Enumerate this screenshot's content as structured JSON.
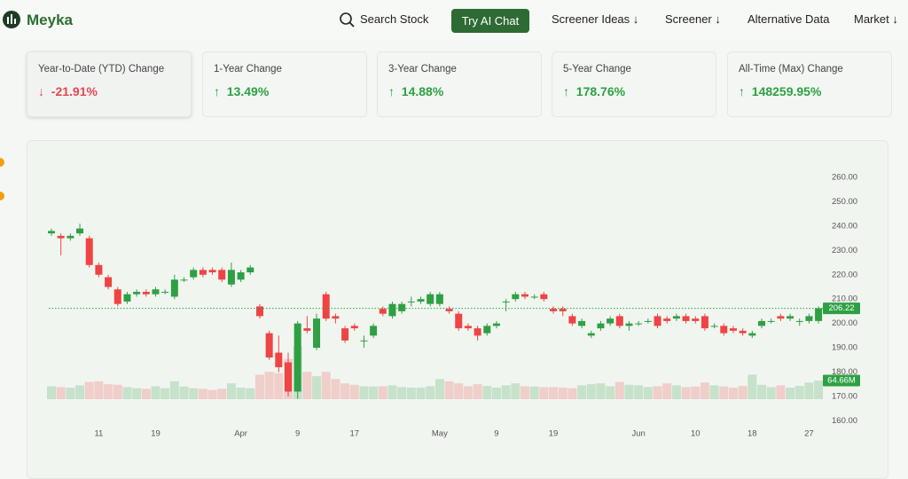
{
  "header": {
    "brand": "Meyka",
    "nav": [
      "Search Stock",
      "Try AI Chat",
      "Screener Ideas ↓",
      "Screener ↓",
      "Alternative Data",
      "Market ↓"
    ]
  },
  "stats": [
    {
      "label": "Year-to-Date (YTD) Change",
      "arrow": "↓",
      "value": "-21.91%"
    },
    {
      "label": "1-Year Change",
      "arrow": "↑",
      "value": "13.49%"
    },
    {
      "label": "3-Year Change",
      "arrow": "↑",
      "value": "14.88%"
    },
    {
      "label": "5-Year Change",
      "arrow": "↑",
      "value": "178.76%"
    },
    {
      "label": "All-Time (Max) Change",
      "arrow": "↑",
      "value": "148259.95%"
    }
  ],
  "chart_data": {
    "type": "candlestick",
    "categories": [
      null,
      null,
      null,
      null,
      null,
      "11",
      null,
      null,
      null,
      null,
      null,
      "19",
      null,
      null,
      null,
      null,
      null,
      null,
      null,
      null,
      "Apr",
      null,
      null,
      null,
      null,
      null,
      "9",
      null,
      null,
      null,
      null,
      null,
      "17",
      null,
      null,
      null,
      null,
      null,
      null,
      null,
      null,
      "May",
      null,
      null,
      null,
      null,
      null,
      "9",
      null,
      null,
      null,
      null,
      null,
      "19",
      null,
      null,
      null,
      null,
      null,
      null,
      null,
      null,
      "Jun",
      null,
      null,
      null,
      null,
      null,
      "10",
      null,
      null,
      null,
      null,
      null,
      "18",
      null,
      null,
      null,
      null,
      null,
      "27",
      null
    ],
    "open": [
      237,
      236,
      235,
      237,
      235,
      224,
      219,
      214,
      209,
      212,
      213,
      212,
      213,
      211,
      218,
      219,
      222,
      222,
      222,
      216,
      218,
      221,
      207,
      196,
      188,
      184,
      172,
      198,
      190,
      212,
      203,
      198,
      199,
      193,
      195,
      206,
      203,
      205,
      209,
      209,
      208,
      208,
      206,
      204,
      199,
      198,
      196,
      199,
      209,
      210,
      212,
      211,
      212,
      206,
      206,
      203,
      199,
      195,
      198,
      200,
      203,
      199,
      200,
      201,
      203,
      202,
      202,
      203,
      202,
      203,
      199,
      199,
      198,
      197,
      195,
      199,
      201,
      203,
      202,
      201,
      201,
      201
    ],
    "high": [
      239,
      237,
      237,
      241,
      236,
      225,
      220,
      215,
      213,
      214,
      214,
      215,
      214,
      220,
      219,
      223,
      223,
      223,
      223,
      225,
      222,
      224,
      208,
      197,
      195,
      188,
      201,
      203,
      204,
      213,
      204,
      199,
      200,
      195,
      200,
      207,
      209,
      209,
      211,
      211,
      213,
      213,
      207,
      205,
      200,
      199,
      200,
      201,
      210,
      213,
      213,
      212,
      213,
      207,
      207,
      204,
      202,
      197,
      201,
      203,
      204,
      201,
      201,
      202,
      204,
      203,
      204,
      204,
      203,
      204,
      200,
      200,
      199,
      198,
      197,
      202,
      202,
      204,
      204,
      202,
      204,
      207
    ],
    "low": [
      236,
      228,
      234,
      236,
      223,
      219,
      214,
      207,
      208,
      211,
      211,
      211,
      212,
      210,
      217,
      218,
      219,
      220,
      217,
      215,
      217,
      220,
      202,
      185,
      180,
      170,
      169,
      196,
      189,
      201,
      200,
      192,
      197,
      190,
      194,
      203,
      202,
      204,
      207,
      208,
      207,
      207,
      204,
      197,
      197,
      193,
      195,
      198,
      205,
      209,
      210,
      210,
      209,
      204,
      203,
      199,
      198,
      194,
      197,
      199,
      198,
      197,
      199,
      200,
      198,
      200,
      201,
      200,
      200,
      197,
      198,
      195,
      196,
      195,
      194,
      198,
      200,
      201,
      201,
      199,
      200,
      200
    ],
    "close": [
      238,
      235,
      236,
      239,
      224,
      220,
      215,
      208,
      212,
      213,
      212,
      214,
      213,
      218,
      218,
      222,
      220,
      221,
      218,
      222,
      221,
      223,
      203,
      186,
      182,
      172,
      200,
      197,
      202,
      202,
      202,
      193,
      198,
      193,
      199,
      204,
      208,
      208,
      209,
      210,
      212,
      212,
      205,
      198,
      198,
      195,
      199,
      200,
      209,
      212,
      211,
      211,
      210,
      205,
      205,
      200,
      201,
      196,
      200,
      202,
      199,
      200,
      200,
      201,
      199,
      201,
      203,
      201,
      201,
      198,
      199,
      196,
      197,
      196,
      196,
      201,
      201,
      202,
      203,
      201,
      203,
      206.22
    ],
    "volume": [
      45,
      42,
      40,
      48,
      60,
      62,
      52,
      50,
      42,
      38,
      36,
      45,
      38,
      62,
      44,
      38,
      36,
      32,
      36,
      55,
      40,
      38,
      85,
      95,
      90,
      140,
      185,
      95,
      80,
      95,
      70,
      55,
      50,
      45,
      44,
      45,
      48,
      42,
      40,
      40,
      45,
      70,
      62,
      55,
      45,
      52,
      46,
      40,
      48,
      55,
      45,
      44,
      42,
      42,
      40,
      38,
      48,
      52,
      55,
      45,
      60,
      50,
      48,
      42,
      45,
      55,
      48,
      42,
      44,
      58,
      48,
      44,
      40,
      46,
      85,
      50,
      42,
      48,
      40,
      46,
      58,
      64.66
    ],
    "volume_last_label": "64.66M",
    "up_color": "#2ea043",
    "down_color": "#ef4444",
    "ylim": [
      155,
      265
    ],
    "yticks": [
      {
        "value": 160,
        "label": "160.00"
      },
      {
        "value": 170,
        "label": "170.00"
      },
      {
        "value": 180,
        "label": "180.00"
      },
      {
        "value": 190,
        "label": "190.00"
      },
      {
        "value": 200,
        "label": "200.00"
      },
      {
        "value": 210,
        "label": "210.00"
      },
      {
        "value": 220,
        "label": "220.00"
      },
      {
        "value": 230,
        "label": "230.00"
      },
      {
        "value": 240,
        "label": "240.00"
      },
      {
        "value": 250,
        "label": "250.00"
      },
      {
        "value": 260,
        "label": "260.00"
      }
    ]
  }
}
